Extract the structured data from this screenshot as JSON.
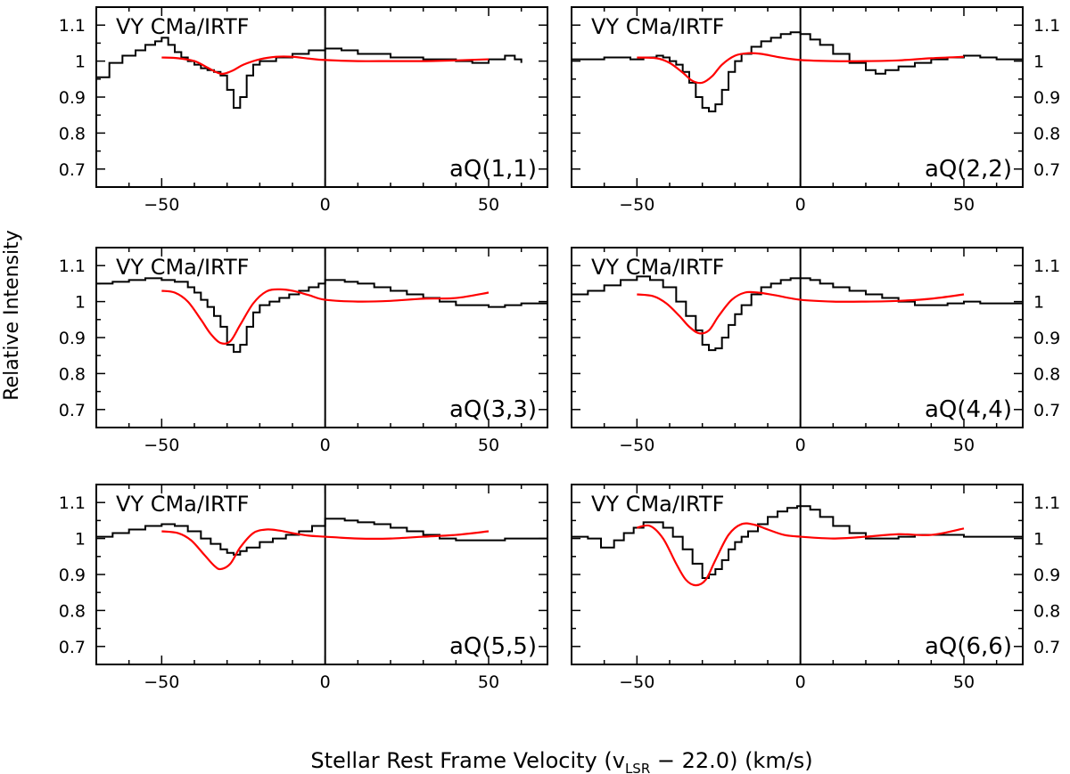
{
  "figure": {
    "xlabel_main": "Stellar Rest Frame Velocity (v",
    "xlabel_sub": "LSR",
    "xlabel_tail": " − 22.0) (km/s)",
    "ylabel": "Relative Intensity"
  },
  "chart_data": [
    {
      "type": "line",
      "title": "VY CMa/IRTF",
      "annotation": "aQ(1,1)",
      "xlim": [
        -70,
        68
      ],
      "ylim": [
        0.65,
        1.15
      ],
      "xticks": [
        -50,
        0,
        50
      ],
      "xtick_labels": [
        "−50",
        "0",
        "50"
      ],
      "yticks": [
        0.7,
        0.8,
        0.9,
        1.0,
        1.1
      ],
      "ytick_labels": [
        "0.7",
        "0.8",
        "0.9",
        "1",
        "1.1"
      ],
      "vline_x": 0,
      "series": [
        {
          "style": "steps",
          "color": "#000000",
          "x": [
            -70,
            -66,
            -62,
            -58,
            -55,
            -52,
            -50,
            -48,
            -46,
            -44,
            -42,
            -40,
            -38,
            -36,
            -34,
            -32,
            -30,
            -28,
            -26,
            -24,
            -22,
            -20,
            -15,
            -10,
            -5,
            0,
            5,
            10,
            20,
            30,
            40,
            45,
            50,
            55,
            58,
            60
          ],
          "y": [
            0.955,
            0.995,
            1.015,
            1.03,
            1.045,
            1.055,
            1.065,
            1.045,
            1.025,
            1.01,
            1.0,
            0.99,
            0.98,
            0.975,
            0.97,
            0.96,
            0.92,
            0.87,
            0.9,
            0.96,
            0.99,
            1.0,
            1.01,
            1.02,
            1.03,
            1.035,
            1.03,
            1.02,
            1.01,
            1.005,
            1.0,
            0.995,
            1.005,
            1.015,
            1.005,
            0.995
          ]
        },
        {
          "style": "smooth",
          "color": "#ff0000",
          "x": [
            -50,
            -45,
            -40,
            -36,
            -33,
            -31,
            -28,
            -25,
            -20,
            -15,
            -10,
            -5,
            0,
            10,
            20,
            30,
            40,
            50
          ],
          "y": [
            1.01,
            1.008,
            1.0,
            0.982,
            0.968,
            0.965,
            0.975,
            0.99,
            1.005,
            1.012,
            1.012,
            1.007,
            1.003,
            1.0,
            1.0,
            1.0,
            1.002,
            1.005
          ]
        }
      ]
    },
    {
      "type": "line",
      "title": "VY CMa/IRTF",
      "annotation": "aQ(2,2)",
      "xlim": [
        -70,
        68
      ],
      "ylim": [
        0.65,
        1.15
      ],
      "xticks": [
        -50,
        0,
        50
      ],
      "xtick_labels": [
        "−50",
        "0",
        "50"
      ],
      "yticks": [
        0.7,
        0.8,
        0.9,
        1.0,
        1.1
      ],
      "ytick_labels": [
        "0.7",
        "0.8",
        "0.9",
        "1",
        "1.1"
      ],
      "vline_x": 0,
      "series": [
        {
          "style": "steps",
          "color": "#000000",
          "x": [
            -70,
            -60,
            -52,
            -48,
            -44,
            -42,
            -40,
            -38,
            -36,
            -34,
            -32,
            -30,
            -28,
            -26,
            -24,
            -22,
            -20,
            -18,
            -15,
            -12,
            -9,
            -6,
            -3,
            0,
            3,
            6,
            10,
            15,
            20,
            23,
            26,
            30,
            35,
            40,
            45,
            50,
            55,
            60,
            68
          ],
          "y": [
            1.005,
            1.01,
            1.005,
            1.01,
            1.015,
            1.01,
            1.0,
            0.99,
            0.97,
            0.94,
            0.9,
            0.87,
            0.86,
            0.88,
            0.92,
            0.97,
            1.0,
            1.02,
            1.04,
            1.055,
            1.065,
            1.075,
            1.08,
            1.075,
            1.06,
            1.045,
            1.02,
            0.995,
            0.975,
            0.965,
            0.975,
            0.985,
            0.995,
            1.005,
            1.01,
            1.015,
            1.01,
            1.005,
            1.0
          ]
        },
        {
          "style": "smooth",
          "color": "#ff0000",
          "x": [
            -50,
            -44,
            -40,
            -36,
            -33,
            -30,
            -27,
            -24,
            -20,
            -16,
            -12,
            -6,
            0,
            10,
            20,
            30,
            40,
            50
          ],
          "y": [
            1.01,
            1.008,
            0.995,
            0.968,
            0.945,
            0.94,
            0.958,
            0.99,
            1.015,
            1.022,
            1.02,
            1.01,
            1.003,
            1.0,
            1.0,
            1.002,
            1.008,
            1.012
          ]
        }
      ]
    },
    {
      "type": "line",
      "title": "VY CMa/IRTF",
      "annotation": "aQ(3,3)",
      "xlim": [
        -70,
        68
      ],
      "ylim": [
        0.65,
        1.15
      ],
      "xticks": [
        -50,
        0,
        50
      ],
      "xtick_labels": [
        "−50",
        "0",
        "50"
      ],
      "yticks": [
        0.7,
        0.8,
        0.9,
        1.0,
        1.1
      ],
      "ytick_labels": [
        "0.7",
        "0.8",
        "0.9",
        "1",
        "1.1"
      ],
      "vline_x": 0,
      "series": [
        {
          "style": "steps",
          "color": "#000000",
          "x": [
            -70,
            -65,
            -60,
            -55,
            -50,
            -46,
            -42,
            -40,
            -38,
            -36,
            -34,
            -32,
            -30,
            -28,
            -26,
            -24,
            -22,
            -20,
            -17,
            -14,
            -11,
            -8,
            -5,
            -2,
            0,
            3,
            6,
            10,
            15,
            20,
            25,
            30,
            35,
            40,
            45,
            50,
            55,
            60,
            68
          ],
          "y": [
            1.05,
            1.055,
            1.06,
            1.065,
            1.06,
            1.055,
            1.04,
            1.025,
            1.005,
            0.985,
            0.96,
            0.93,
            0.88,
            0.86,
            0.88,
            0.93,
            0.97,
            0.99,
            1.0,
            1.01,
            1.02,
            1.03,
            1.04,
            1.05,
            1.06,
            1.06,
            1.055,
            1.05,
            1.04,
            1.03,
            1.02,
            1.01,
            1.0,
            0.99,
            0.99,
            0.985,
            0.99,
            0.995,
            1.0
          ]
        },
        {
          "style": "smooth",
          "color": "#ff0000",
          "x": [
            -50,
            -46,
            -42,
            -38,
            -35,
            -32,
            -29,
            -26,
            -22,
            -18,
            -14,
            -10,
            -5,
            0,
            10,
            20,
            30,
            40,
            50
          ],
          "y": [
            1.03,
            1.025,
            1.0,
            0.95,
            0.91,
            0.885,
            0.89,
            0.935,
            0.995,
            1.028,
            1.034,
            1.03,
            1.018,
            1.005,
            1.0,
            1.002,
            1.008,
            1.01,
            1.025
          ]
        }
      ]
    },
    {
      "type": "line",
      "title": "VY CMa/IRTF",
      "annotation": "aQ(4,4)",
      "xlim": [
        -70,
        68
      ],
      "ylim": [
        0.65,
        1.15
      ],
      "xticks": [
        -50,
        0,
        50
      ],
      "xtick_labels": [
        "−50",
        "0",
        "50"
      ],
      "yticks": [
        0.7,
        0.8,
        0.9,
        1.0,
        1.1
      ],
      "ytick_labels": [
        "0.7",
        "0.8",
        "0.9",
        "1",
        "1.1"
      ],
      "vline_x": 0,
      "series": [
        {
          "style": "steps",
          "color": "#000000",
          "x": [
            -70,
            -65,
            -60,
            -55,
            -50,
            -46,
            -42,
            -38,
            -35,
            -32,
            -30,
            -28,
            -26,
            -24,
            -22,
            -20,
            -18,
            -15,
            -12,
            -9,
            -6,
            -3,
            0,
            3,
            6,
            10,
            15,
            20,
            25,
            30,
            35,
            40,
            45,
            50,
            55,
            60,
            68
          ],
          "y": [
            1.02,
            1.03,
            1.045,
            1.06,
            1.07,
            1.06,
            1.04,
            1.0,
            0.96,
            0.92,
            0.88,
            0.865,
            0.87,
            0.9,
            0.935,
            0.965,
            0.99,
            1.02,
            1.04,
            1.05,
            1.06,
            1.065,
            1.065,
            1.06,
            1.05,
            1.04,
            1.03,
            1.02,
            1.01,
            1.0,
            0.99,
            0.99,
            0.995,
            1.0,
            0.995,
            0.995,
            1.0
          ]
        },
        {
          "style": "smooth",
          "color": "#ff0000",
          "x": [
            -50,
            -45,
            -41,
            -37,
            -34,
            -31,
            -28,
            -25,
            -21,
            -17,
            -13,
            -8,
            0,
            10,
            20,
            30,
            40,
            50
          ],
          "y": [
            1.02,
            1.015,
            0.995,
            0.96,
            0.93,
            0.912,
            0.92,
            0.96,
            1.005,
            1.025,
            1.025,
            1.018,
            1.005,
            1.0,
            1.0,
            1.002,
            1.008,
            1.02
          ]
        }
      ]
    },
    {
      "type": "line",
      "title": "VY CMa/IRTF",
      "annotation": "aQ(5,5)",
      "xlim": [
        -70,
        68
      ],
      "ylim": [
        0.65,
        1.15
      ],
      "xticks": [
        -50,
        0,
        50
      ],
      "xtick_labels": [
        "−50",
        "0",
        "50"
      ],
      "yticks": [
        0.7,
        0.8,
        0.9,
        1.0,
        1.1
      ],
      "ytick_labels": [
        "0.7",
        "0.8",
        "0.9",
        "1",
        "1.1"
      ],
      "vline_x": 0,
      "series": [
        {
          "style": "steps",
          "color": "#000000",
          "x": [
            -70,
            -65,
            -60,
            -55,
            -50,
            -46,
            -42,
            -38,
            -35,
            -32,
            -30,
            -28,
            -26,
            -24,
            -20,
            -16,
            -12,
            -8,
            -4,
            0,
            3,
            6,
            10,
            15,
            20,
            25,
            30,
            35,
            40,
            45,
            50,
            55,
            60,
            68
          ],
          "y": [
            1.005,
            1.015,
            1.025,
            1.035,
            1.04,
            1.035,
            1.02,
            1.0,
            0.985,
            0.97,
            0.96,
            0.955,
            0.965,
            0.975,
            0.99,
            1.0,
            1.01,
            1.02,
            1.035,
            1.055,
            1.055,
            1.05,
            1.045,
            1.04,
            1.03,
            1.02,
            1.01,
            1.0,
            0.995,
            0.995,
            0.995,
            1.0,
            1.0,
            1.0
          ]
        },
        {
          "style": "smooth",
          "color": "#ff0000",
          "x": [
            -50,
            -45,
            -41,
            -37,
            -34,
            -32,
            -29,
            -26,
            -22,
            -18,
            -14,
            -10,
            -5,
            0,
            10,
            20,
            30,
            40,
            50
          ],
          "y": [
            1.02,
            1.015,
            0.995,
            0.955,
            0.925,
            0.915,
            0.93,
            0.975,
            1.015,
            1.025,
            1.022,
            1.015,
            1.008,
            1.005,
            1.0,
            1.0,
            1.005,
            1.01,
            1.02
          ]
        }
      ]
    },
    {
      "type": "line",
      "title": "VY CMa/IRTF",
      "annotation": "aQ(6,6)",
      "xlim": [
        -70,
        68
      ],
      "ylim": [
        0.65,
        1.15
      ],
      "xticks": [
        -50,
        0,
        50
      ],
      "xtick_labels": [
        "−50",
        "0",
        "50"
      ],
      "yticks": [
        0.7,
        0.8,
        0.9,
        1.0,
        1.1
      ],
      "ytick_labels": [
        "0.7",
        "0.8",
        "0.9",
        "1",
        "1.1"
      ],
      "vline_x": 0,
      "series": [
        {
          "style": "steps",
          "color": "#000000",
          "x": [
            -70,
            -65,
            -61,
            -57,
            -54,
            -51,
            -48,
            -45,
            -42,
            -39,
            -36,
            -33,
            -30,
            -28,
            -26,
            -24,
            -22,
            -20,
            -18,
            -16,
            -13,
            -10,
            -7,
            -4,
            -1,
            1,
            3,
            6,
            10,
            15,
            20,
            25,
            30,
            35,
            40,
            45,
            50,
            55,
            60,
            68
          ],
          "y": [
            1.005,
            1.0,
            0.975,
            0.995,
            1.015,
            1.03,
            1.045,
            1.045,
            1.03,
            1.005,
            0.97,
            0.93,
            0.89,
            0.9,
            0.915,
            0.94,
            0.97,
            0.99,
            1.005,
            1.02,
            1.04,
            1.06,
            1.075,
            1.085,
            1.09,
            1.09,
            1.08,
            1.06,
            1.035,
            1.015,
            1.0,
            1.0,
            1.005,
            1.01,
            1.01,
            1.01,
            1.005,
            1.005,
            1.005,
            1.0
          ]
        },
        {
          "style": "smooth",
          "color": "#ff0000",
          "x": [
            -50,
            -46,
            -42,
            -38,
            -35,
            -32,
            -29,
            -26,
            -22,
            -18,
            -14,
            -10,
            -5,
            0,
            10,
            20,
            30,
            40,
            50
          ],
          "y": [
            1.03,
            1.035,
            1.0,
            0.93,
            0.885,
            0.87,
            0.885,
            0.94,
            1.01,
            1.04,
            1.038,
            1.025,
            1.01,
            1.005,
            1.0,
            1.005,
            1.012,
            1.01,
            1.028
          ]
        }
      ]
    }
  ]
}
